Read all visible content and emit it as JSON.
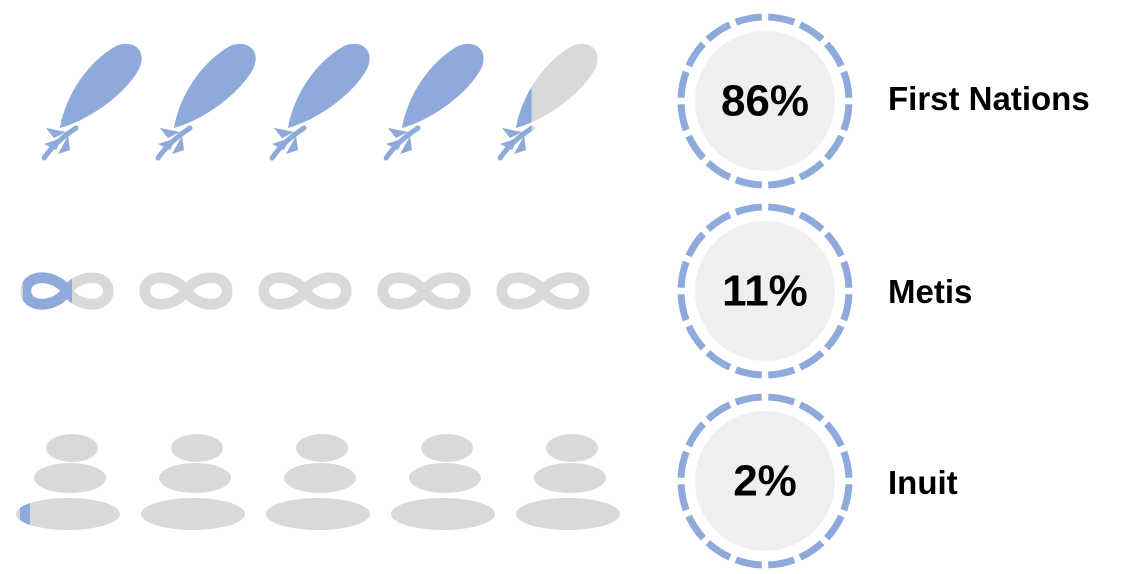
{
  "colors": {
    "filled": "#8eaadb",
    "empty": "#d9d9d9",
    "circle_bg": "#efefef"
  },
  "chart_data": {
    "type": "pictograph",
    "icon_value_percent": 20,
    "rows": [
      {
        "label": "First Nations",
        "value_text": "86%",
        "value": 86,
        "icon": "feather-icon",
        "icon_count": 5
      },
      {
        "label": "Metis",
        "value_text": "11%",
        "value": 11,
        "icon": "infinity-icon",
        "icon_count": 5
      },
      {
        "label": "Inuit",
        "value_text": "2%",
        "value": 2,
        "icon": "inukshuk-stones-icon",
        "icon_count": 5
      }
    ]
  }
}
